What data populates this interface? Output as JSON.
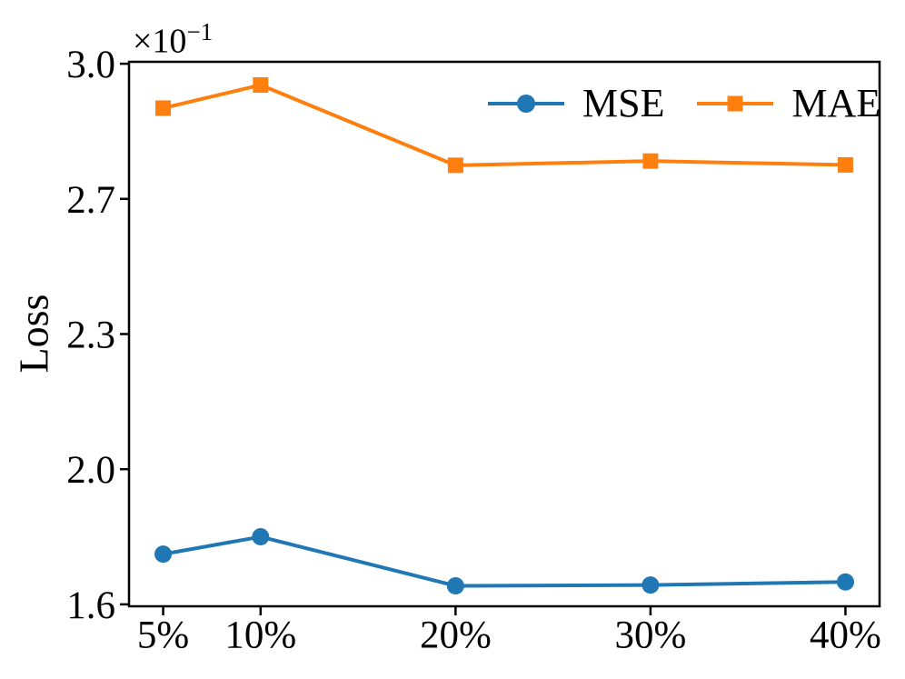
{
  "figure": {
    "background": "#ffffff",
    "text_color": "#000000"
  },
  "chart_data": {
    "type": "line",
    "title": "",
    "xlabel": "",
    "ylabel": "Loss",
    "offset": {
      "base": "×10",
      "exponent": "−1",
      "text": "×10⁻¹"
    },
    "x_categories": [
      "5%",
      "10%",
      "20%",
      "30%",
      "40%"
    ],
    "x_values": [
      5,
      10,
      20,
      30,
      40
    ],
    "xlim": [
      3.25,
      41.75
    ],
    "ylim": [
      0.1595,
      0.3005
    ],
    "y_ticks": [
      0.16,
      0.195,
      0.23,
      0.265,
      0.3
    ],
    "y_tick_labels": [
      "1.6",
      "2.0",
      "2.3",
      "2.7",
      "3.0"
    ],
    "grid": false,
    "series": [
      {
        "name": "MSE",
        "marker": "circle",
        "color": "#1f77b4",
        "values": [
          0.173,
          0.1775,
          0.1648,
          0.165,
          0.1658
        ]
      },
      {
        "name": "MAE",
        "marker": "square",
        "color": "#ff7f0e",
        "values": [
          0.2885,
          0.2945,
          0.2737,
          0.2748,
          0.2738
        ]
      }
    ],
    "legend": {
      "labels": [
        "MSE",
        "MAE"
      ],
      "position": "upper-center-right",
      "frame": false
    }
  }
}
